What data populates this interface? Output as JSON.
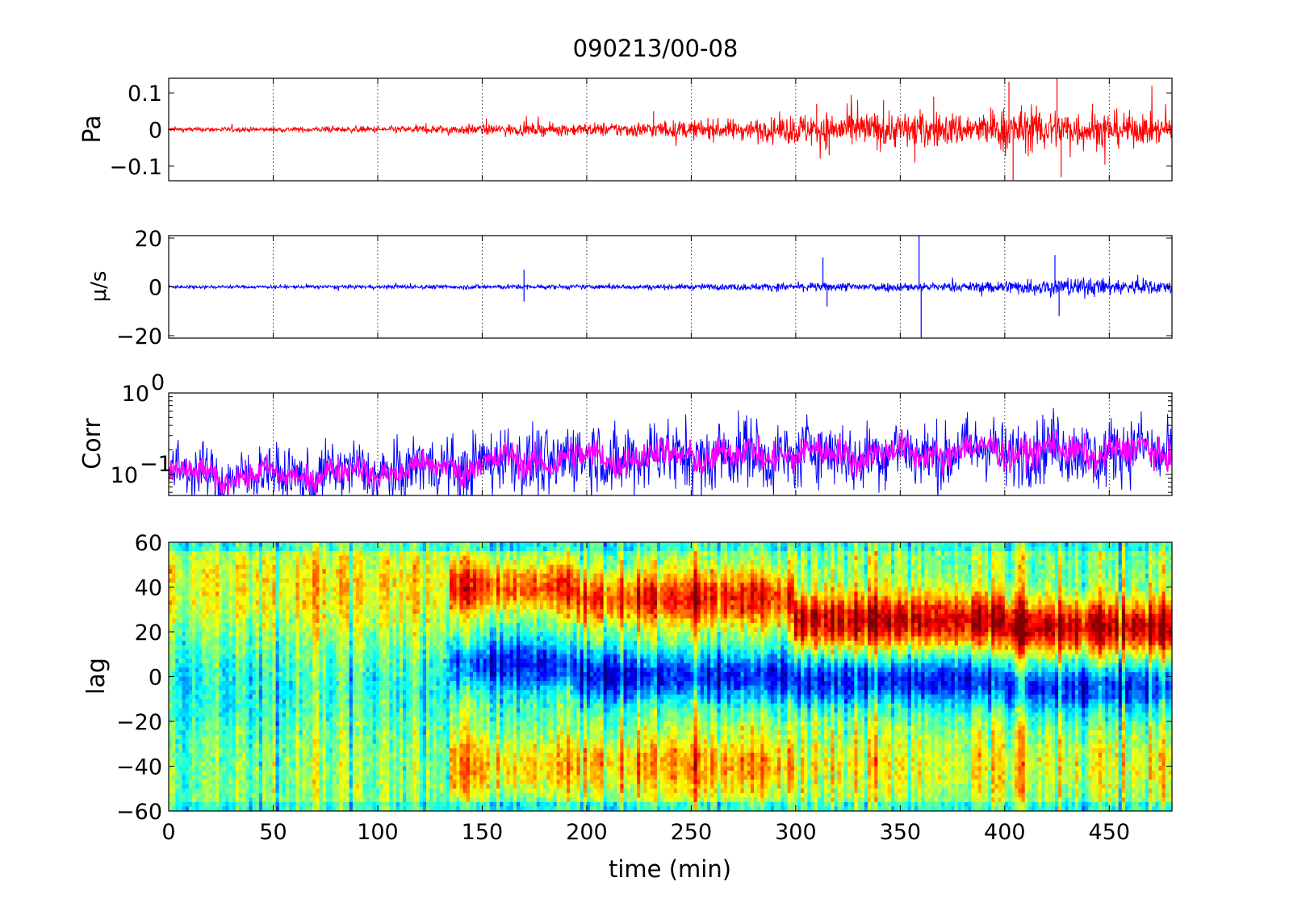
{
  "title": "090213/00-08",
  "xlabel": "time (min)",
  "chart_data": [
    {
      "panel": "pressure",
      "type": "line",
      "title": "090213/00-08",
      "ylabel": "Pa",
      "xlim": [
        0,
        480
      ],
      "ylim": [
        -0.14,
        0.14
      ],
      "yticks": [
        0.1,
        0,
        -0.1
      ],
      "ytick_labels": [
        "0.1",
        "0",
        "−0.1"
      ],
      "x_grid": true,
      "series_color": "#ff0000",
      "envelope": {
        "x": [
          0,
          50,
          100,
          150,
          200,
          250,
          290,
          300,
          350,
          390,
          400,
          450,
          480
        ],
        "amplitude": [
          0.006,
          0.006,
          0.008,
          0.013,
          0.016,
          0.022,
          0.028,
          0.04,
          0.045,
          0.04,
          0.055,
          0.045,
          0.03
        ]
      },
      "spikes": [
        {
          "x": 152,
          "y": 0.03
        },
        {
          "x": 232,
          "y": 0.05
        },
        {
          "x": 310,
          "y": 0.07
        },
        {
          "x": 316,
          "y": -0.07
        },
        {
          "x": 342,
          "y": 0.08
        },
        {
          "x": 357,
          "y": -0.09
        },
        {
          "x": 366,
          "y": 0.09
        },
        {
          "x": 402,
          "y": 0.13
        },
        {
          "x": 404,
          "y": -0.14
        },
        {
          "x": 425,
          "y": 0.14
        },
        {
          "x": 427,
          "y": -0.13
        },
        {
          "x": 442,
          "y": 0.07
        }
      ]
    },
    {
      "panel": "velocity",
      "type": "line",
      "ylabel": "μ/s",
      "xlim": [
        0,
        480
      ],
      "ylim": [
        -21,
        21
      ],
      "yticks": [
        20,
        0,
        -20
      ],
      "ytick_labels": [
        "20",
        "0",
        "−20"
      ],
      "x_grid": true,
      "series_color": "#0000ff",
      "envelope": {
        "x": [
          0,
          100,
          150,
          200,
          250,
          300,
          330,
          380,
          400,
          430,
          480
        ],
        "amplitude": [
          0.6,
          0.7,
          0.9,
          0.8,
          1.0,
          1.5,
          1.7,
          1.6,
          2.5,
          3.5,
          2.5
        ]
      },
      "spikes": [
        {
          "x": 170,
          "y": 7
        },
        {
          "x": 170,
          "y": -6
        },
        {
          "x": 313,
          "y": 12
        },
        {
          "x": 315,
          "y": -8
        },
        {
          "x": 359,
          "y": 21
        },
        {
          "x": 360,
          "y": -21
        },
        {
          "x": 424,
          "y": 13
        },
        {
          "x": 426,
          "y": -12
        }
      ]
    },
    {
      "panel": "correlation",
      "type": "line",
      "ylabel": "Corr",
      "yscale": "log",
      "xlim": [
        0,
        480
      ],
      "ylim": [
        0.055,
        1
      ],
      "yticks": [
        1,
        0.1
      ],
      "ytick_labels": [
        "10^0",
        "10^-1"
      ],
      "x_grid": true,
      "series": [
        {
          "color": "#0000ff",
          "x": [
            0,
            50,
            100,
            130,
            150,
            200,
            250,
            300,
            350,
            400,
            450,
            480
          ],
          "median": [
            0.1,
            0.095,
            0.11,
            0.12,
            0.14,
            0.16,
            0.17,
            0.18,
            0.18,
            0.2,
            0.19,
            0.19
          ],
          "spread": [
            1.6,
            1.6,
            1.7,
            1.7,
            1.8,
            1.9,
            1.9,
            1.8,
            1.8,
            1.8,
            1.8,
            1.8
          ]
        },
        {
          "color": "#ff00ff",
          "x": [
            0,
            50,
            100,
            130,
            150,
            200,
            250,
            300,
            350,
            400,
            450,
            480
          ],
          "median": [
            0.1,
            0.095,
            0.11,
            0.12,
            0.14,
            0.16,
            0.17,
            0.18,
            0.18,
            0.2,
            0.19,
            0.19
          ],
          "spread": [
            1.25,
            1.25,
            1.25,
            1.25,
            1.3,
            1.3,
            1.3,
            1.3,
            1.3,
            1.3,
            1.3,
            1.3
          ]
        }
      ]
    },
    {
      "panel": "lag",
      "type": "heatmap",
      "ylabel": "lag",
      "xlabel": "time (min)",
      "xlim": [
        0,
        480
      ],
      "ylim": [
        -60,
        60
      ],
      "xticks": [
        0,
        50,
        100,
        150,
        200,
        250,
        300,
        350,
        400,
        450
      ],
      "yticks": [
        60,
        40,
        20,
        0,
        -20,
        -40,
        -60
      ],
      "ytick_labels": [
        "60",
        "40",
        "20",
        "0",
        "−20",
        "−40",
        "−60"
      ],
      "colormap": "jet",
      "regions": [
        {
          "x": [
            0,
            135
          ],
          "positive_peak_lag": 40,
          "positive_value": 0.62,
          "negative_value": 0.42,
          "pattern": "weak mixed yellow-green"
        },
        {
          "x": [
            135,
            195
          ],
          "positive_peak_lag": 40,
          "positive_value": 0.85,
          "negative_lag": 5,
          "negative_value": 0.2,
          "pattern": "red above, blue near 0, yellow-orange below"
        },
        {
          "x": [
            195,
            300
          ],
          "positive_peak_lag": 35,
          "positive_value": 0.85,
          "negative_lag": 0,
          "negative_value": 0.15,
          "pattern": "red above, blue near 0, orange below"
        },
        {
          "x": [
            300,
            400
          ],
          "positive_peak_lag": 25,
          "positive_value": 0.92,
          "negative_lag": -2,
          "negative_value": 0.15,
          "pattern": "red band 20-40, blue band 0 to -15"
        },
        {
          "x": [
            400,
            480
          ],
          "positive_peak_lag": 22,
          "positive_value": 0.95,
          "negative_lag": -5,
          "negative_value": 0.2,
          "pattern": "red band 10-35, blue below, yellow-green bottom"
        }
      ]
    }
  ]
}
